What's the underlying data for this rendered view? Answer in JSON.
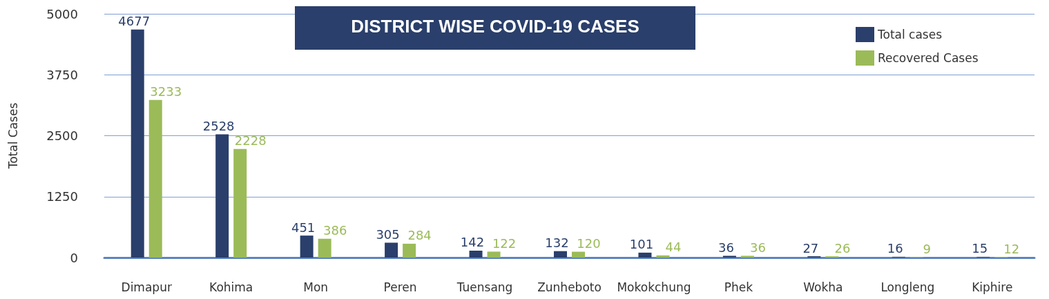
{
  "chart_data": {
    "type": "bar",
    "title": "DISTRICT WISE COVID-19 CASES",
    "ylabel": "Total Cases",
    "categories": [
      "Dimapur",
      "Kohima",
      "Mon",
      "Peren",
      "Tuensang",
      "Zunheboto",
      "Mokokchung",
      "Phek",
      "Wokha",
      "Longleng",
      "Kiphire"
    ],
    "series": [
      {
        "name": "Total cases",
        "color": "#2a3f6b",
        "values": [
          4677,
          2528,
          451,
          305,
          142,
          132,
          101,
          36,
          27,
          16,
          15
        ]
      },
      {
        "name": "Recovered Cases",
        "color": "#9bbb59",
        "values": [
          3233,
          2228,
          386,
          284,
          122,
          120,
          44,
          36,
          26,
          9,
          12
        ]
      }
    ],
    "ylim": [
      0,
      5000
    ],
    "yticks": [
      0,
      1250,
      2500,
      3750,
      5000
    ],
    "grid": "y",
    "legend": "top right",
    "data_labels": true
  }
}
